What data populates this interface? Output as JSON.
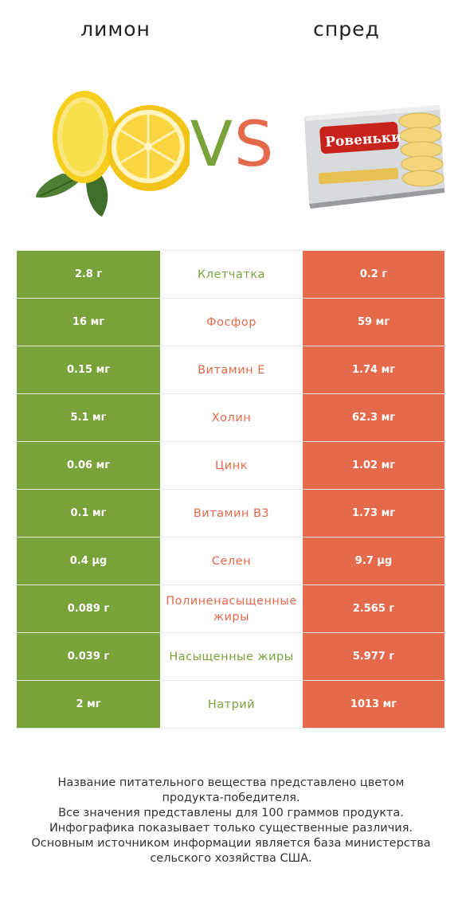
{
  "header": {
    "left_title": "лимон",
    "right_title": "спред",
    "vs_v": "V",
    "vs_s": "S"
  },
  "images": {
    "left": "lemon-image",
    "right": "spread-package-image",
    "brand_text": "Ровеньки"
  },
  "colors": {
    "green": "#7aa23a",
    "orange": "#e46a4b"
  },
  "rows": [
    {
      "left": "2.8 г",
      "name": "Клетчатка",
      "right": "0.2 г",
      "winner": "left"
    },
    {
      "left": "16 мг",
      "name": "Фосфор",
      "right": "59 мг",
      "winner": "right"
    },
    {
      "left": "0.15 мг",
      "name": "Витамин E",
      "right": "1.74 мг",
      "winner": "right"
    },
    {
      "left": "5.1 мг",
      "name": "Холин",
      "right": "62.3 мг",
      "winner": "right"
    },
    {
      "left": "0.06 мг",
      "name": "Цинк",
      "right": "1.02 мг",
      "winner": "right"
    },
    {
      "left": "0.1 мг",
      "name": "Витамин B3",
      "right": "1.73 мг",
      "winner": "right"
    },
    {
      "left": "0.4 µg",
      "name": "Селен",
      "right": "9.7 µg",
      "winner": "right"
    },
    {
      "left": "0.089 г",
      "name": "Полиненасыщенные жиры",
      "right": "2.565 г",
      "winner": "right"
    },
    {
      "left": "0.039 г",
      "name": "Насыщенные жиры",
      "right": "5.977 г",
      "winner": "left"
    },
    {
      "left": "2 мг",
      "name": "Натрий",
      "right": "1013 мг",
      "winner": "left"
    }
  ],
  "footer": {
    "line1": "Название питательного вещества представлено цветом",
    "line2": "продукта-победителя.",
    "line3": "Все значения представлены для 100 граммов продукта.",
    "line4": "Инфографика показывает только существенные различия.",
    "line5": "Основным источником информации является база министерства",
    "line6": "сельского хозяйства США."
  }
}
